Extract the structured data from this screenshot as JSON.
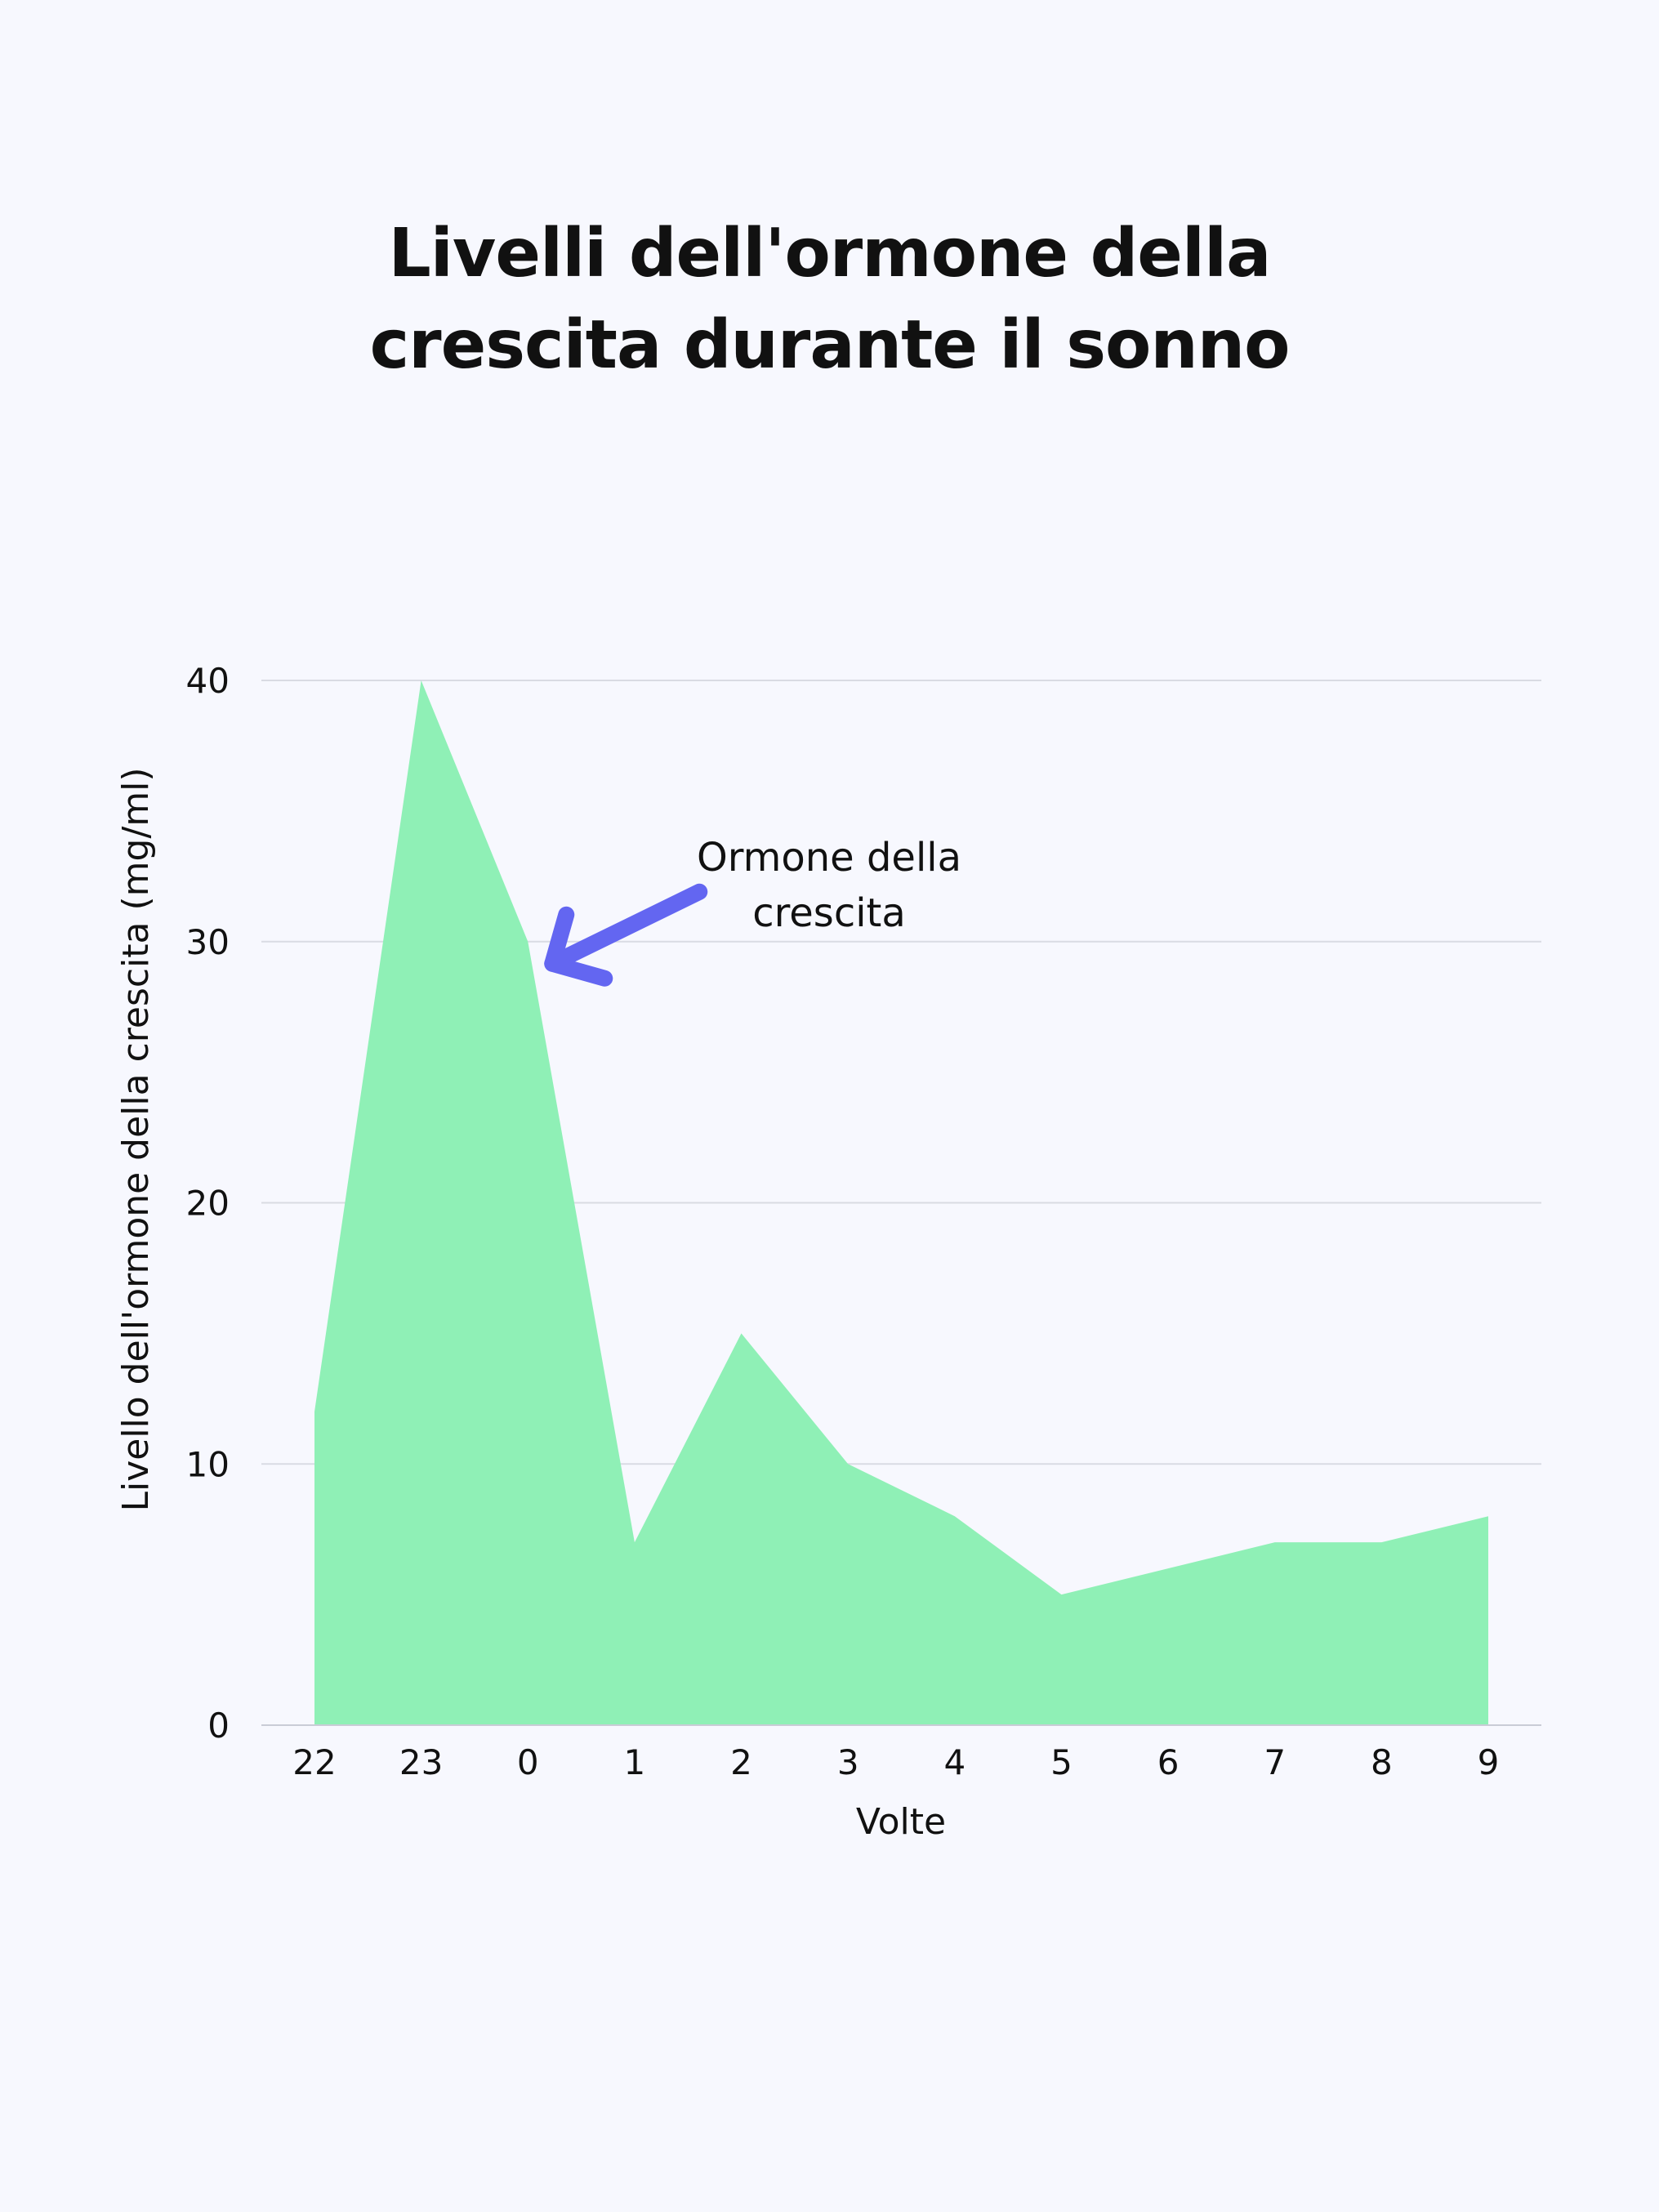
{
  "title_line1": "Livelli dell'ormone della",
  "title_line2": "crescita durante il sonno",
  "chart_data": {
    "type": "area",
    "title": "Livelli dell'ormone della crescita durante il sonno",
    "xlabel": "Volte",
    "ylabel": "Livello dell'ormone della crescita (mg/ml)",
    "categories": [
      "22",
      "23",
      "0",
      "1",
      "2",
      "3",
      "4",
      "5",
      "6",
      "7",
      "8",
      "9"
    ],
    "values": [
      12,
      40,
      30,
      7,
      15,
      10,
      8,
      5,
      6,
      7,
      7,
      8
    ],
    "ylim": [
      0,
      40
    ],
    "yticks": [
      0,
      10,
      20,
      30,
      40
    ],
    "grid": true,
    "fill_color": "#8ff0b6",
    "annotation": {
      "line1": "Ormone della",
      "line2": "crescita",
      "target_category": "0",
      "arrow_color": "#6366f1"
    }
  }
}
